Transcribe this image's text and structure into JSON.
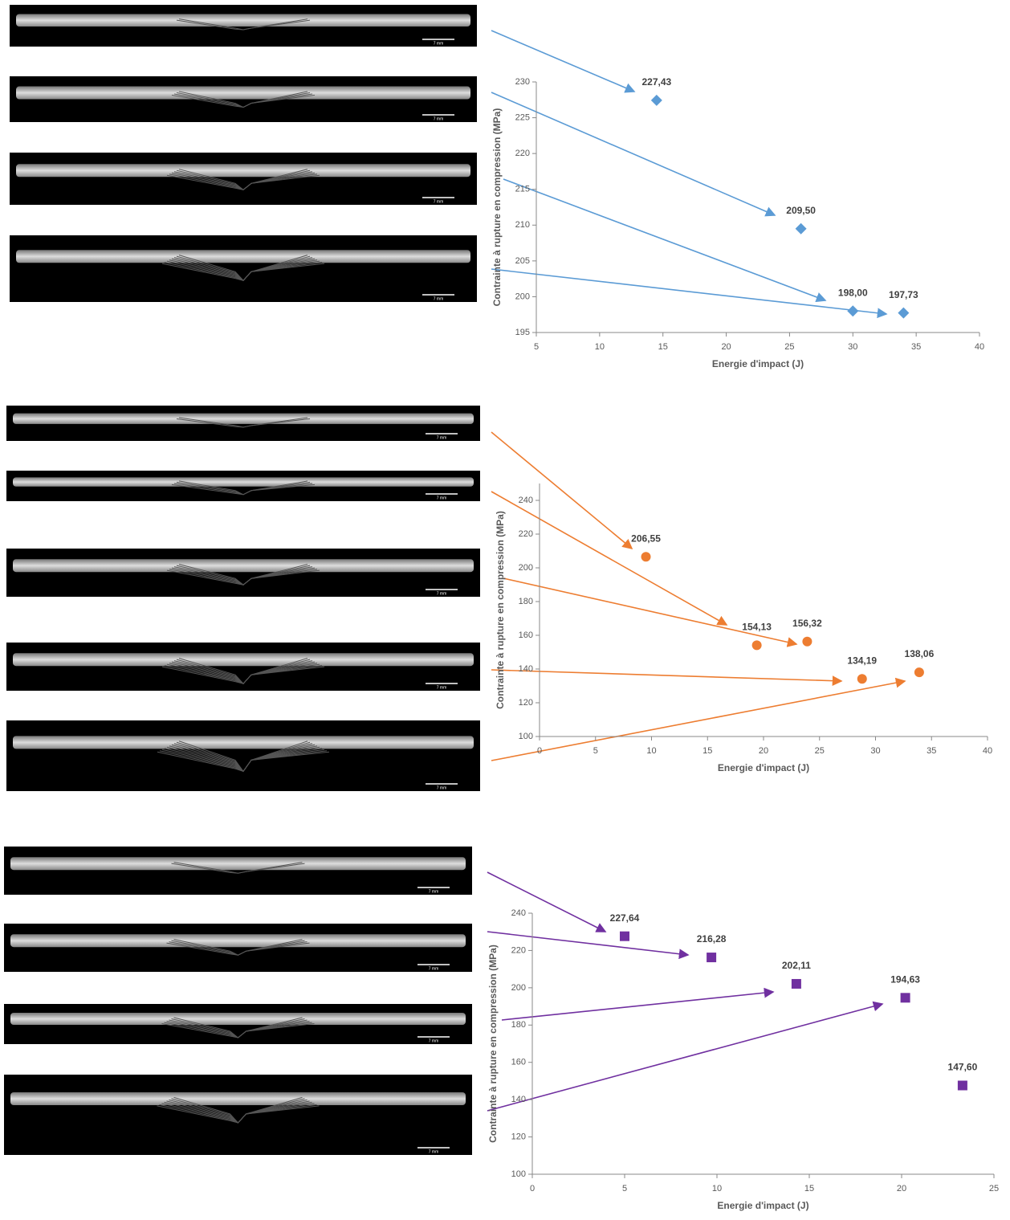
{
  "chart_data": [
    {
      "type": "scatter",
      "x_label": "Energie d'impact (J)",
      "y_label": "Contrainte à rupture en compression (MPa)",
      "x": [
        14.5,
        25.9,
        30.0,
        34.0
      ],
      "values": [
        227.43,
        209.5,
        198.0,
        197.73
      ],
      "value_labels": [
        "227,43",
        "209,50",
        "198,00",
        "197,73"
      ],
      "color": "#5b9bd5",
      "marker": "diamond",
      "xlim": [
        5,
        40
      ],
      "xticks": [
        5,
        10,
        15,
        20,
        25,
        30,
        35,
        40
      ],
      "ylim": [
        195,
        230
      ],
      "yticks": [
        195,
        200,
        205,
        210,
        215,
        220,
        225,
        230
      ],
      "scale_bar_label": "7 mm"
    },
    {
      "type": "scatter",
      "x_label": "Energie d'impact (J)",
      "y_label": "Contrainte à rupture en compression (MPa)",
      "x": [
        9.5,
        19.4,
        23.9,
        28.8,
        33.9
      ],
      "values": [
        206.55,
        154.13,
        156.32,
        134.19,
        138.06
      ],
      "value_labels": [
        "206,55",
        "154,13",
        "156,32",
        "134,19",
        "138,06"
      ],
      "color": "#ed7d31",
      "marker": "circle",
      "xlim": [
        0,
        40
      ],
      "xticks": [
        0,
        5,
        10,
        15,
        20,
        25,
        30,
        35,
        40
      ],
      "ylim": [
        100,
        250
      ],
      "yticks": [
        100,
        120,
        140,
        160,
        180,
        200,
        220,
        240
      ],
      "scale_bar_label": "7 mm"
    },
    {
      "type": "scatter",
      "x_label": "Energie d'impact (J)",
      "y_label": "Contrainte à rupture en compression (MPa)",
      "x": [
        5.0,
        9.7,
        14.3,
        20.2,
        23.3
      ],
      "values": [
        227.64,
        216.28,
        202.11,
        194.63,
        147.6
      ],
      "value_labels": [
        "227,64",
        "216,28",
        "202,11",
        "194,63",
        "147,60"
      ],
      "color": "#7030a0",
      "marker": "square",
      "xlim": [
        0,
        25
      ],
      "xticks": [
        0,
        5,
        10,
        15,
        20,
        25
      ],
      "ylim": [
        100,
        240
      ],
      "yticks": [
        100,
        120,
        140,
        160,
        180,
        200,
        220,
        240
      ],
      "scale_bar_label": "7 mm"
    }
  ]
}
